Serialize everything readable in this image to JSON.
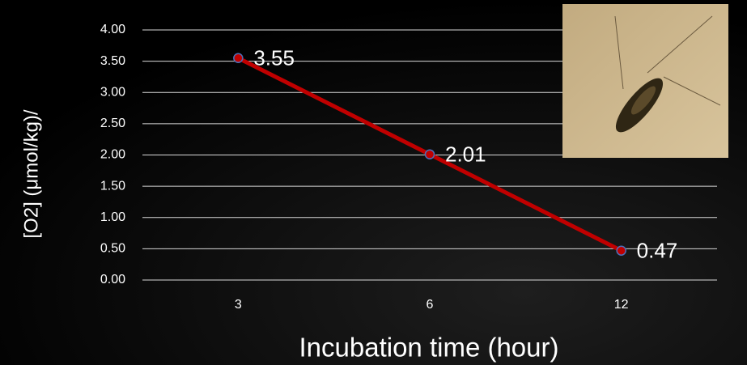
{
  "chart_data": {
    "type": "line",
    "x_label": "Incubation time (hour)",
    "y_label": "[O2] (μmol/kg)/",
    "categories": [
      "3",
      "6",
      "12"
    ],
    "series": [
      {
        "name": "[O2]",
        "color": "#c00000",
        "values": [
          3.55,
          2.01,
          0.47
        ]
      }
    ],
    "ylim": [
      0,
      4
    ],
    "yticks": [
      {
        "value": 0,
        "label": "0.00"
      },
      {
        "value": 0.5,
        "label": "0.50"
      },
      {
        "value": 1,
        "label": "1.00"
      },
      {
        "value": 1.5,
        "label": "1.50"
      },
      {
        "value": 2,
        "label": "2.00"
      },
      {
        "value": 2.5,
        "label": "2.50"
      },
      {
        "value": 3,
        "label": "3.00"
      },
      {
        "value": 3.5,
        "label": "3.50"
      },
      {
        "value": 4,
        "label": "4.00"
      }
    ],
    "grid": true
  }
}
